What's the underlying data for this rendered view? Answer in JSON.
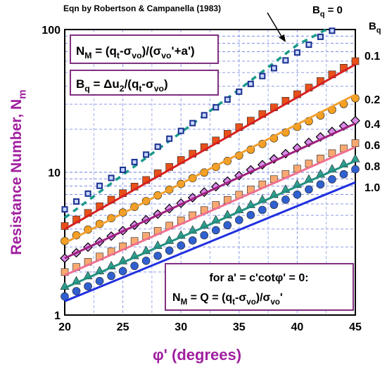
{
  "chart_data": {
    "type": "scatter",
    "axis_label_y": [
      "Resistance Number, N",
      "m"
    ],
    "axis_label_x": [
      "φ' (degrees)"
    ],
    "xlim": [
      20,
      45
    ],
    "xticks": [
      20,
      25,
      30,
      35,
      40,
      45
    ],
    "xminorticks": [
      22.5,
      27.5,
      32.5,
      37.5,
      42.5
    ],
    "ylim": [
      1,
      100
    ],
    "yticks": [
      1,
      10,
      100
    ],
    "log_y": true,
    "grid": true,
    "yminorticks": [
      2,
      3,
      4,
      5,
      6,
      7,
      8,
      9,
      20,
      30,
      40,
      50,
      60,
      70,
      80,
      90
    ],
    "legend_title": [
      "B",
      "q"
    ],
    "x": [
      20,
      21,
      22,
      23,
      24,
      25,
      26,
      27,
      28,
      29,
      30,
      31,
      32,
      33,
      34,
      35,
      36,
      37,
      38,
      39,
      40,
      41,
      42,
      43,
      44,
      45
    ],
    "series": [
      {
        "name": [
          "B",
          "q",
          " = 0"
        ],
        "color": "#1a2f8f",
        "marker": "square-small",
        "values": [
          5.5,
          6.24,
          7.09,
          8.04,
          9.13,
          10.4,
          11.8,
          13.3,
          15.1,
          17.2,
          19.5,
          22.1,
          25.1,
          28.5,
          32.3,
          36.7,
          41.6,
          47.2,
          53.6,
          60.8,
          69.0,
          78.3,
          88.9,
          98,
          null,
          null
        ]
      },
      {
        "name": "0.1",
        "color": "#e8501a",
        "marker": "square",
        "values": [
          4.2,
          4.67,
          5.19,
          5.78,
          6.43,
          7.14,
          7.94,
          8.83,
          9.84,
          10.9,
          12.2,
          13.5,
          15.0,
          16.7,
          18.6,
          20.7,
          23.0,
          25.6,
          28.5,
          31.7,
          35.2,
          39.2,
          43.6,
          48.5,
          54.0,
          60.0
        ]
      },
      {
        "name": "0.2",
        "color": "#f5a020",
        "marker": "circle",
        "values": [
          3.3,
          3.62,
          3.97,
          4.35,
          4.77,
          5.23,
          5.73,
          6.29,
          6.89,
          7.56,
          8.29,
          9.09,
          9.96,
          10.9,
          12.0,
          13.1,
          14.4,
          15.8,
          17.3,
          19.0,
          20.8,
          22.8,
          25.0,
          27.4,
          30.1,
          33.0
        ]
      },
      {
        "name": "0.4",
        "color": "#d88ae8",
        "marker": "diamond",
        "values": [
          2.5,
          2.73,
          2.99,
          3.26,
          3.57,
          3.9,
          4.26,
          4.65,
          5.09,
          5.56,
          6.07,
          6.64,
          7.26,
          7.93,
          8.67,
          9.47,
          10.4,
          11.3,
          12.4,
          13.5,
          14.8,
          16.2,
          17.7,
          19.3,
          21.1,
          23.0
        ]
      },
      {
        "name": "0.6",
        "color": "#f8a870",
        "marker": "square",
        "values": [
          2.0,
          2.17,
          2.36,
          2.57,
          2.79,
          3.03,
          3.3,
          3.58,
          3.89,
          4.23,
          4.6,
          5.0,
          5.43,
          5.9,
          6.41,
          6.97,
          7.57,
          8.23,
          8.95,
          9.72,
          10.6,
          11.5,
          12.5,
          13.6,
          14.7,
          16.0
        ]
      },
      {
        "name": "0.8",
        "color": "#30a090",
        "marker": "triangle",
        "values": [
          1.6,
          1.74,
          1.89,
          2.05,
          2.22,
          2.41,
          2.62,
          2.84,
          3.09,
          3.35,
          3.64,
          3.95,
          4.29,
          4.66,
          5.06,
          5.49,
          5.96,
          6.47,
          7.03,
          7.63,
          8.28,
          8.99,
          9.76,
          10.6,
          11.5,
          12.5
        ]
      },
      {
        "name": "1.0",
        "color": "#3060d0",
        "marker": "circle",
        "values": [
          1.35,
          1.47,
          1.59,
          1.73,
          1.88,
          2.03,
          2.21,
          2.4,
          2.6,
          2.83,
          3.07,
          3.33,
          3.62,
          3.93,
          4.26,
          4.63,
          5.02,
          5.45,
          5.92,
          6.43,
          6.98,
          7.58,
          8.22,
          8.93,
          9.69,
          10.5
        ]
      }
    ],
    "fits": [
      {
        "x": [
          20,
          45
        ],
        "values": [
          4.0,
          57
        ],
        "color": "#d82020"
      },
      {
        "x": [
          20,
          45
        ],
        "values": [
          3.2,
          35
        ],
        "color": "#f0a030"
      },
      {
        "x": [
          20,
          45
        ],
        "values": [
          2.5,
          22
        ],
        "color": "#a0207f"
      },
      {
        "x": [
          20,
          45
        ],
        "values": [
          1.9,
          15
        ],
        "color": "#f07090"
      },
      {
        "x": [
          20,
          45
        ],
        "values": [
          1.55,
          12
        ],
        "color": "#209080"
      },
      {
        "x": [
          20,
          45
        ],
        "values": [
          1.25,
          8.5
        ],
        "color": "#2030e0"
      }
    ],
    "reference_line": {
      "name": "Eqn by Robertson & Campanella (1983)",
      "color": "#1a9a8a",
      "x": [
        20,
        25,
        30,
        35,
        40,
        42.5
      ],
      "values": [
        4.8,
        9.6,
        19,
        38,
        78,
        100
      ]
    },
    "annotations": [
      [
        "N",
        "M",
        " = (q",
        "t",
        "-σ",
        "vo",
        ")/(σ",
        "vo",
        "'+a')"
      ],
      [
        "B",
        "q",
        " = Δu",
        "2",
        "/(q",
        "t",
        "-σ",
        "vo",
        ")"
      ],
      [
        "for a' = c'cotφ' = 0:"
      ],
      [
        "N",
        "M",
        " = Q = (q",
        "t",
        "-σ",
        "vo",
        ")/σ",
        "vo",
        "'"
      ]
    ]
  }
}
